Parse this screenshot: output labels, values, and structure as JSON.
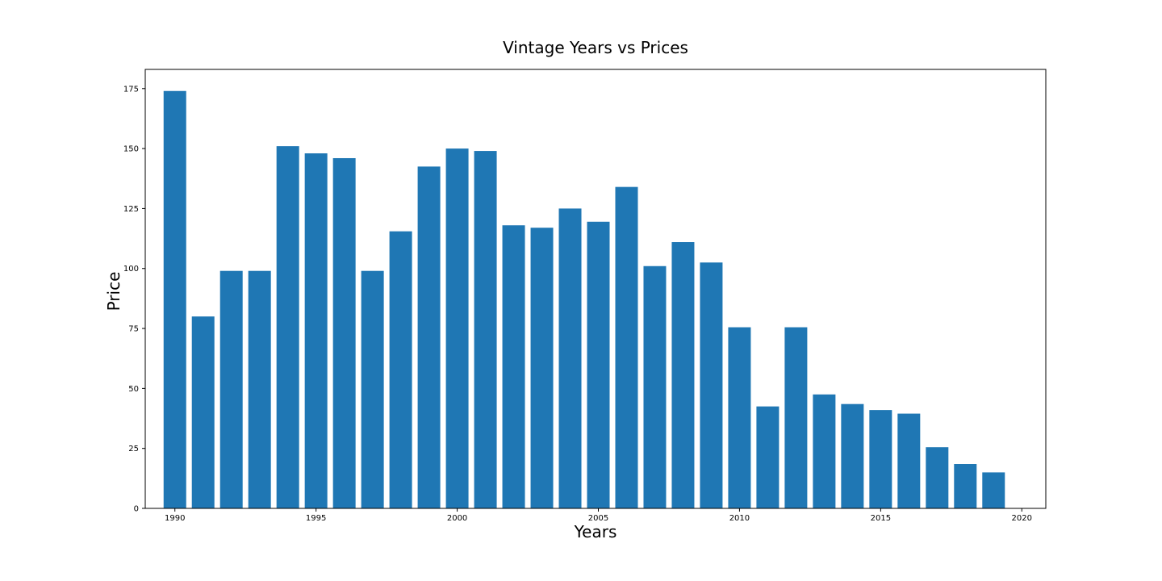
{
  "chart_data": {
    "type": "bar",
    "title": "Vintage Years vs Prices",
    "xlabel": "Years",
    "ylabel": "Price",
    "x": [
      1990,
      1991,
      1992,
      1993,
      1994,
      1995,
      1996,
      1997,
      1998,
      1999,
      2000,
      2001,
      2002,
      2003,
      2004,
      2005,
      2006,
      2007,
      2008,
      2009,
      2010,
      2011,
      2012,
      2013,
      2014,
      2015,
      2016,
      2017,
      2018,
      2019
    ],
    "values": [
      174,
      80,
      99,
      99,
      151,
      148,
      146,
      99,
      115.5,
      142.5,
      150,
      149,
      118,
      117,
      125,
      119.5,
      134,
      101,
      111,
      102.5,
      75.5,
      42.5,
      75.5,
      47.5,
      43.5,
      41,
      39.5,
      25.5,
      18.5,
      15
    ],
    "xlim": [
      1988.95,
      2020.85
    ],
    "ylim": [
      0,
      183
    ],
    "xticks": [
      1990,
      1995,
      2000,
      2005,
      2010,
      2015,
      2020
    ],
    "xtick_labels": [
      "1990",
      "1995",
      "2000",
      "2005",
      "2010",
      "2015",
      "2020"
    ],
    "yticks": [
      0,
      25,
      50,
      75,
      100,
      125,
      150,
      175
    ],
    "ytick_labels": [
      "0",
      "25",
      "50",
      "75",
      "100",
      "125",
      "150",
      "175"
    ],
    "bar_width": 0.8,
    "grid": false,
    "bar_color": "#1f77b4"
  }
}
